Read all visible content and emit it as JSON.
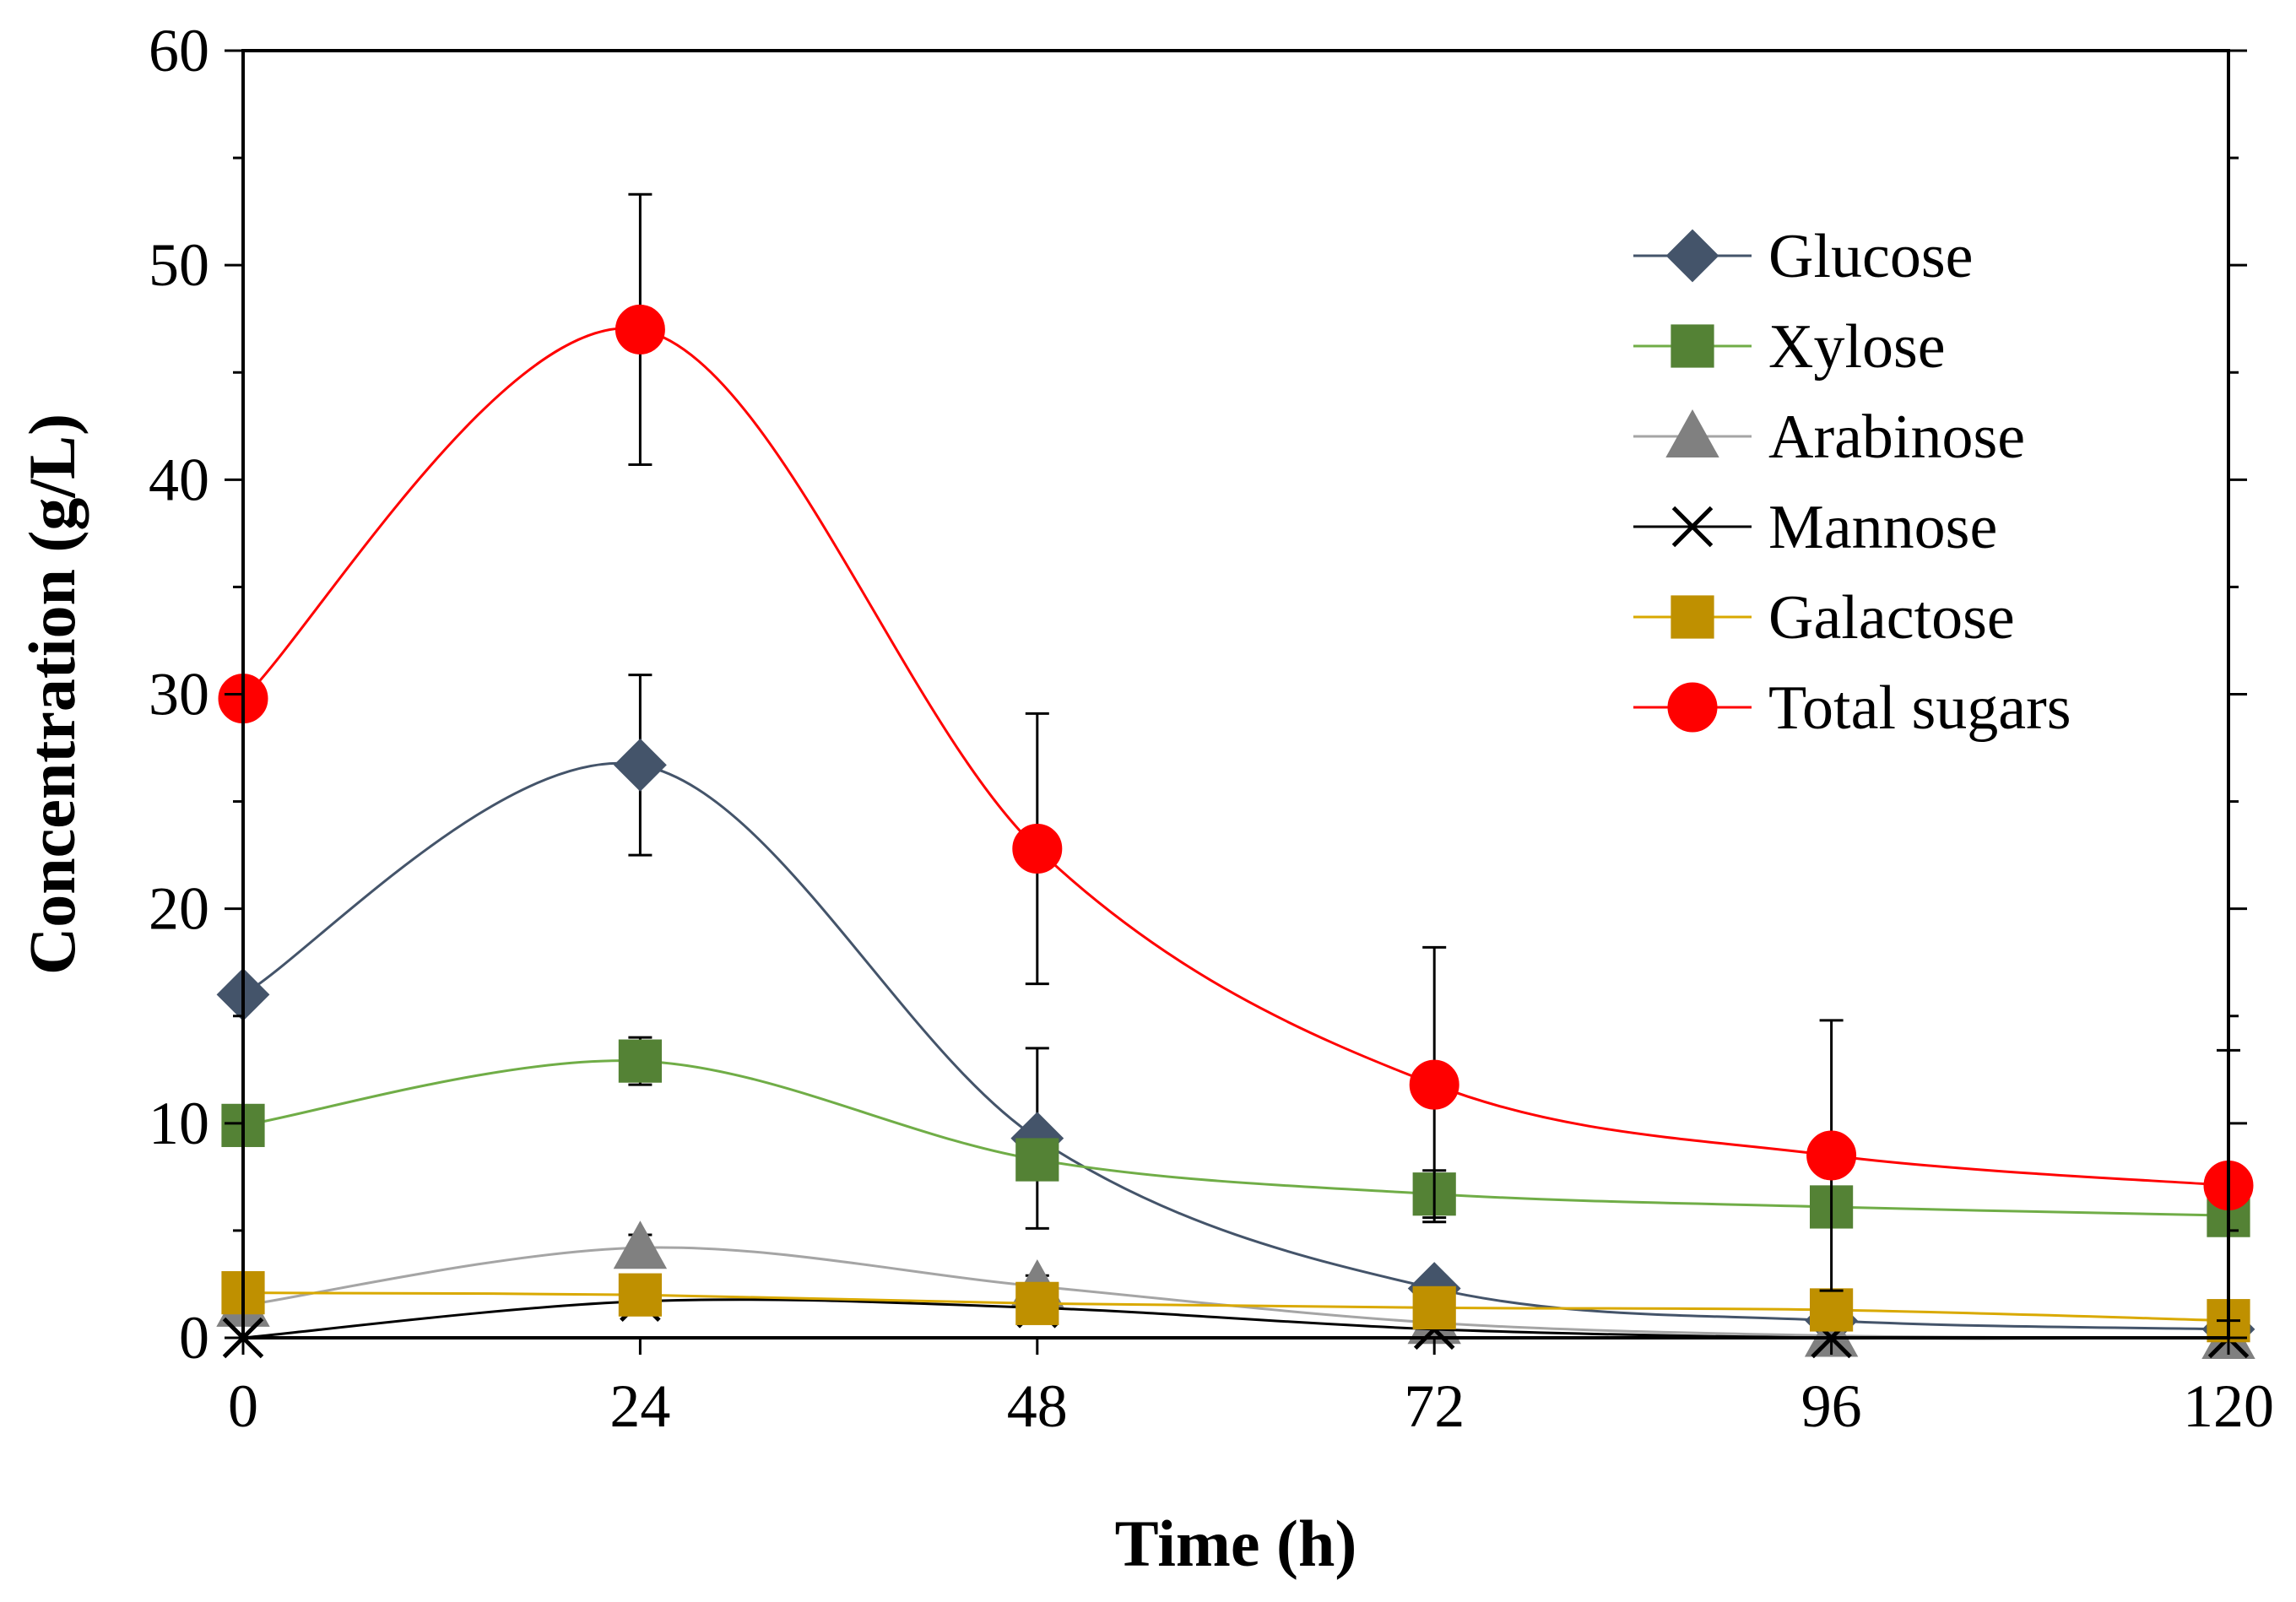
{
  "chart_data": {
    "type": "line",
    "title": "",
    "xlabel": "Time (h)",
    "ylabel": "Concentration (g/L)",
    "xlim": [
      0,
      120
    ],
    "ylim": [
      0,
      60
    ],
    "x": [
      0,
      24,
      48,
      72,
      96,
      120
    ],
    "x_tick_labels": [
      "0",
      "24",
      "48",
      "72",
      "96",
      "120"
    ],
    "y_tick_labels": [
      "0",
      "10",
      "20",
      "30",
      "40",
      "50",
      "60"
    ],
    "legend_position": "top-right",
    "grid": false,
    "series": [
      {
        "name": "Glucose",
        "marker": "diamond",
        "color": "#44546A",
        "line_color": "#44546A",
        "values": [
          16,
          26.7,
          9.3,
          2.3,
          0.8,
          0.4
        ],
        "errors": [
          0,
          4.2,
          4.2,
          0,
          0,
          0
        ]
      },
      {
        "name": "Xylose",
        "marker": "square",
        "color": "#548235",
        "line_color": "#70AD47",
        "values": [
          9.9,
          12.9,
          8.3,
          6.7,
          6.1,
          5.7
        ],
        "errors": [
          0,
          1.1,
          0,
          1.1,
          0,
          0
        ]
      },
      {
        "name": "Arabinose",
        "marker": "triangle",
        "color": "#808080",
        "line_color": "#A5A5A5",
        "values": [
          1.5,
          4.2,
          2.4,
          0.7,
          0.1,
          0.0
        ],
        "errors": [
          0,
          0.6,
          0.5,
          0,
          0,
          0
        ]
      },
      {
        "name": "Mannose",
        "marker": "x",
        "color": "#000000",
        "line_color": "#000000",
        "values": [
          0.0,
          1.7,
          1.4,
          0.4,
          0.0,
          0.0
        ],
        "errors": [
          0,
          0,
          0,
          0,
          0,
          0
        ]
      },
      {
        "name": "Galactose",
        "marker": "square",
        "color": "#BF9000",
        "line_color": "#D9A900",
        "values": [
          2.1,
          2.0,
          1.6,
          1.4,
          1.3,
          0.8
        ],
        "errors": [
          0,
          0,
          0,
          0,
          0,
          0
        ]
      },
      {
        "name": "Total sugars",
        "marker": "circle",
        "color": "#FF0000",
        "line_color": "#FF0000",
        "values": [
          29.8,
          47.0,
          22.8,
          11.8,
          8.5,
          7.1
        ],
        "errors": [
          0,
          6.3,
          6.3,
          6.4,
          6.3,
          6.3
        ]
      }
    ]
  }
}
